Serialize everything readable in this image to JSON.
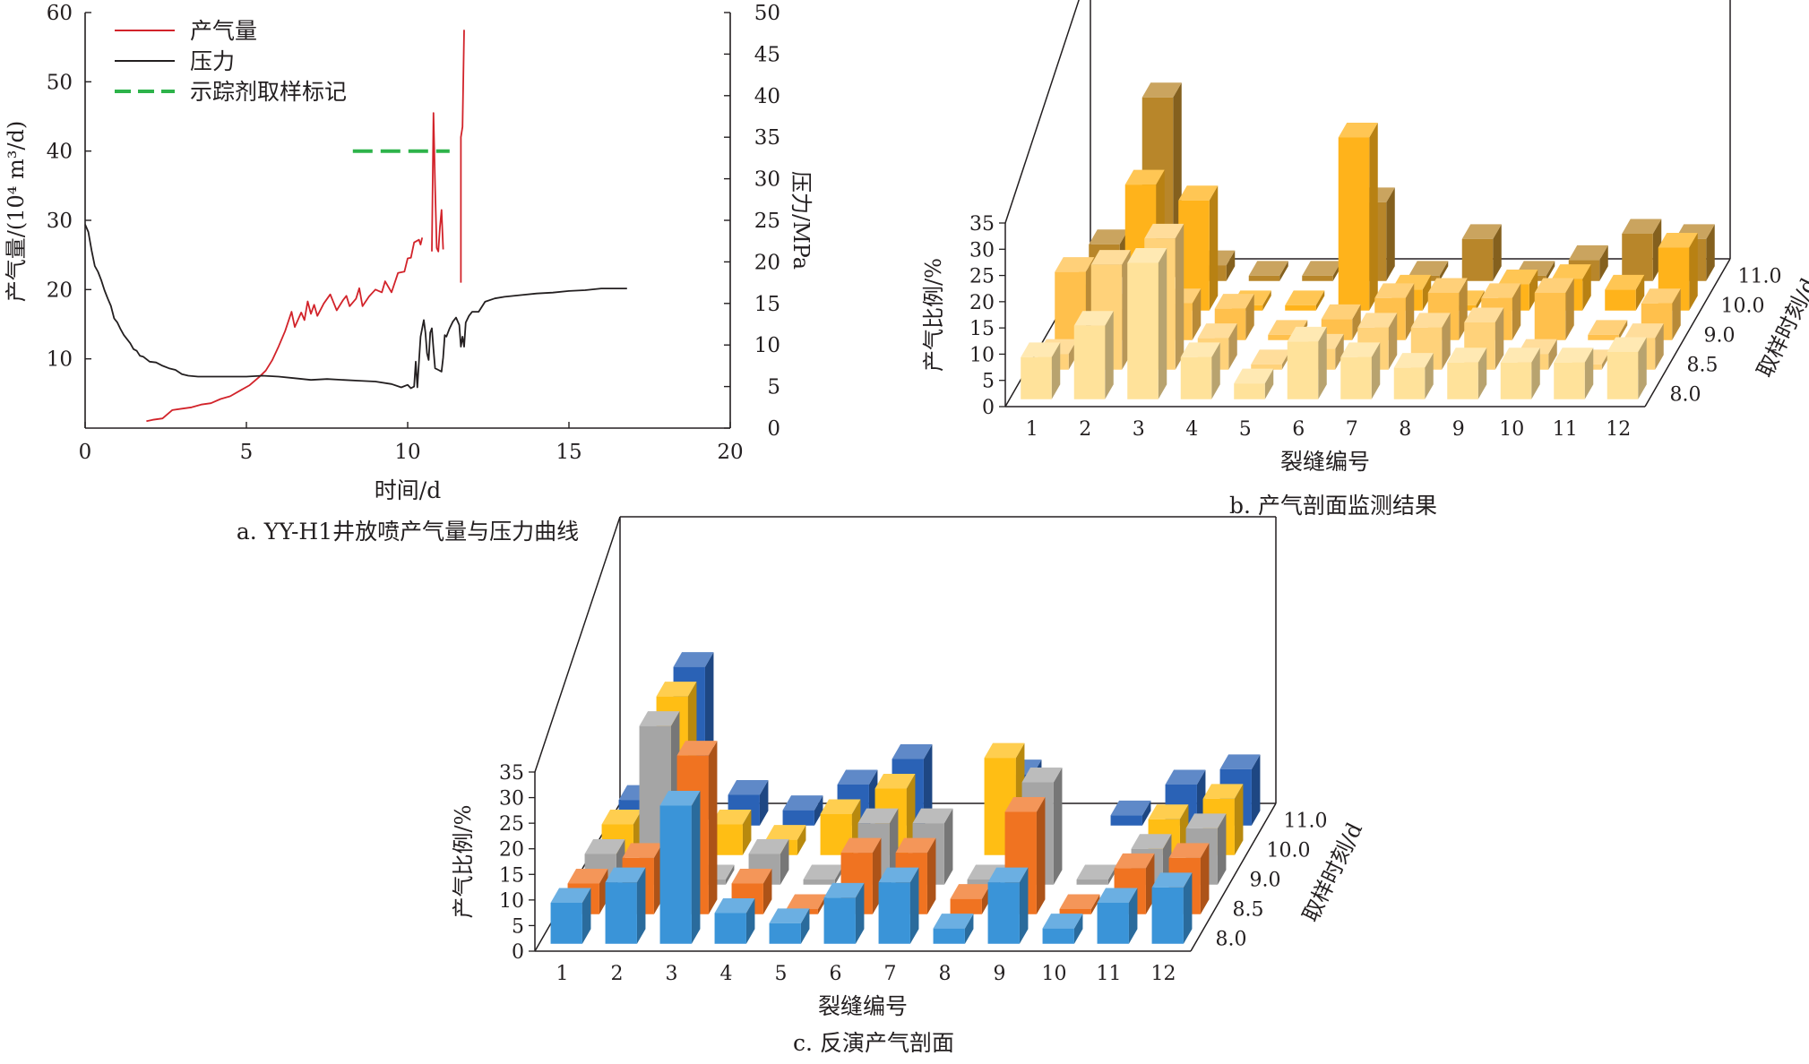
{
  "chart_data": [
    {
      "type": "line",
      "caption": "a. YY-H1井放喷产气量与压力曲线",
      "xlabel": "时间/d",
      "ylabel_left": "产气量/(10⁴ m³/d)",
      "ylabel_right": "压力/MPa",
      "xlim": [
        0,
        20
      ],
      "xticks": [
        "0",
        "5",
        "10",
        "15",
        "20"
      ],
      "ylim_left": [
        0,
        60
      ],
      "yticks_left": [
        "10",
        "20",
        "30",
        "40",
        "50",
        "60"
      ],
      "ylim_right": [
        0,
        50
      ],
      "yticks_right": [
        "0",
        "5",
        "10",
        "15",
        "20",
        "25",
        "30",
        "35",
        "40",
        "45",
        "50"
      ],
      "grid": false,
      "legend_position": "top-left",
      "series": [
        {
          "name": "产气量",
          "axis": "left",
          "color": "#d2232a",
          "style": "solid",
          "points": [
            [
              1.9,
              1
            ],
            [
              2.1,
              1.2
            ],
            [
              2.4,
              1.4
            ],
            [
              2.7,
              2.6
            ],
            [
              3.0,
              2.8
            ],
            [
              3.3,
              3.0
            ],
            [
              3.6,
              3.4
            ],
            [
              3.9,
              3.6
            ],
            [
              4.2,
              4.2
            ],
            [
              4.5,
              4.6
            ],
            [
              4.8,
              5.4
            ],
            [
              5.1,
              6.2
            ],
            [
              5.4,
              7.4
            ],
            [
              5.6,
              8.3
            ],
            [
              5.8,
              9.8
            ],
            [
              6.0,
              11.8
            ],
            [
              6.2,
              14.0
            ],
            [
              6.4,
              16.8
            ],
            [
              6.5,
              14.6
            ],
            [
              6.7,
              16.7
            ],
            [
              6.8,
              15.6
            ],
            [
              6.9,
              18.3
            ],
            [
              7.0,
              16.5
            ],
            [
              7.1,
              17.8
            ],
            [
              7.2,
              16.2
            ],
            [
              7.4,
              18.0
            ],
            [
              7.6,
              19.3
            ],
            [
              7.8,
              17.0
            ],
            [
              8.0,
              18.5
            ],
            [
              8.1,
              19.1
            ],
            [
              8.2,
              17.6
            ],
            [
              8.4,
              18.7
            ],
            [
              8.5,
              20.2
            ],
            [
              8.6,
              17.6
            ],
            [
              8.8,
              19.0
            ],
            [
              9.0,
              20.0
            ],
            [
              9.2,
              19.6
            ],
            [
              9.3,
              21.2
            ],
            [
              9.5,
              19.6
            ],
            [
              9.7,
              22.4
            ],
            [
              9.9,
              22.6
            ],
            [
              10.0,
              24.5
            ],
            [
              10.1,
              24.6
            ],
            [
              10.2,
              26.8
            ],
            [
              10.35,
              27.2
            ],
            [
              10.4,
              26.5
            ],
            [
              10.45,
              27.5
            ]
          ]
        },
        {
          "name": "产气量",
          "axis": "left",
          "color": "#d2232a",
          "style": "solid",
          "legend": false,
          "points": [
            [
              10.75,
              25.5
            ],
            [
              10.8,
              45.5
            ],
            [
              10.85,
              35.0
            ],
            [
              10.9,
              26.0
            ],
            [
              10.95,
              25.5
            ],
            [
              11.0,
              29.0
            ],
            [
              11.05,
              31.5
            ],
            [
              11.1,
              25.8
            ]
          ]
        },
        {
          "name": "产气量",
          "axis": "left",
          "color": "#d2232a",
          "style": "solid",
          "legend": false,
          "points": [
            [
              11.65,
              21.0
            ],
            [
              11.65,
              42.0
            ],
            [
              11.7,
              43.5
            ],
            [
              11.75,
              57.5
            ]
          ]
        },
        {
          "name": "压力",
          "axis": "right",
          "color": "#231f20",
          "style": "solid",
          "points": [
            [
              0.0,
              24.5
            ],
            [
              0.1,
              23.6
            ],
            [
              0.2,
              21.4
            ],
            [
              0.3,
              19.5
            ],
            [
              0.4,
              18.8
            ],
            [
              0.5,
              17.8
            ],
            [
              0.6,
              16.6
            ],
            [
              0.7,
              15.6
            ],
            [
              0.8,
              14.7
            ],
            [
              0.9,
              13.2
            ],
            [
              1.0,
              12.7
            ],
            [
              1.1,
              11.9
            ],
            [
              1.2,
              11.2
            ],
            [
              1.3,
              10.7
            ],
            [
              1.4,
              10.2
            ],
            [
              1.5,
              9.5
            ],
            [
              1.6,
              9.3
            ],
            [
              1.7,
              8.7
            ],
            [
              1.8,
              8.6
            ],
            [
              2.0,
              8.0
            ],
            [
              2.2,
              7.9
            ],
            [
              2.4,
              7.5
            ],
            [
              2.6,
              7.2
            ],
            [
              2.8,
              7.0
            ],
            [
              3.0,
              6.5
            ],
            [
              3.2,
              6.3
            ],
            [
              3.5,
              6.2
            ],
            [
              4.0,
              6.2
            ],
            [
              4.5,
              6.2
            ],
            [
              5.0,
              6.2
            ],
            [
              5.5,
              6.3
            ],
            [
              6.0,
              6.2
            ],
            [
              6.5,
              6.0
            ],
            [
              7.0,
              5.8
            ],
            [
              7.5,
              5.9
            ],
            [
              8.0,
              5.8
            ],
            [
              8.5,
              5.7
            ],
            [
              9.0,
              5.6
            ],
            [
              9.5,
              5.3
            ],
            [
              9.8,
              4.9
            ],
            [
              10.0,
              5.2
            ],
            [
              10.1,
              4.8
            ],
            [
              10.2,
              5.0
            ],
            [
              10.25,
              8.0
            ],
            [
              10.3,
              4.9
            ],
            [
              10.35,
              8.0
            ],
            [
              10.4,
              11.0
            ],
            [
              10.45,
              12.0
            ],
            [
              10.5,
              13.0
            ],
            [
              10.55,
              11.5
            ],
            [
              10.6,
              9.0
            ],
            [
              10.65,
              8.2
            ],
            [
              10.7,
              11.5
            ],
            [
              10.75,
              12.0
            ],
            [
              10.8,
              9.5
            ],
            [
              10.85,
              7.2
            ],
            [
              10.95,
              7.0
            ],
            [
              11.05,
              6.8
            ],
            [
              11.1,
              8.5
            ],
            [
              11.15,
              11.2
            ],
            [
              11.2,
              11.0
            ],
            [
              11.3,
              12.0
            ],
            [
              11.4,
              12.8
            ],
            [
              11.5,
              13.3
            ],
            [
              11.6,
              12.4
            ],
            [
              11.65,
              9.8
            ],
            [
              11.7,
              11.0
            ],
            [
              11.75,
              9.8
            ],
            [
              11.8,
              12.7
            ],
            [
              11.9,
              13.5
            ],
            [
              12.0,
              14.0
            ],
            [
              12.2,
              14.0
            ],
            [
              12.4,
              15.2
            ],
            [
              12.7,
              15.6
            ],
            [
              13.0,
              15.8
            ],
            [
              13.5,
              16.0
            ],
            [
              14.0,
              16.2
            ],
            [
              14.5,
              16.3
            ],
            [
              15.0,
              16.5
            ],
            [
              15.5,
              16.6
            ],
            [
              16.0,
              16.8
            ],
            [
              16.5,
              16.8
            ],
            [
              16.8,
              16.8
            ]
          ]
        },
        {
          "name": "示踪剂取样标记",
          "axis": "left",
          "color": "#2db34a",
          "style": "dashed",
          "points": [
            [
              8.3,
              40
            ],
            [
              11.3,
              40
            ]
          ]
        }
      ]
    },
    {
      "type": "bar3d",
      "caption": "b. 产气剖面监测结果",
      "xlabel": "裂缝编号",
      "ylabel": "产气比例/%",
      "zlabel": "取样时刻/d",
      "categories": [
        "1",
        "2",
        "3",
        "4",
        "5",
        "6",
        "7",
        "8",
        "9",
        "10",
        "11",
        "12"
      ],
      "yticks": [
        "0",
        "5",
        "10",
        "15",
        "20",
        "25",
        "30",
        "35"
      ],
      "ylim": [
        0,
        35
      ],
      "series": [
        {
          "name": "8.0",
          "color": "#ffe29a",
          "values": [
            8,
            14,
            26,
            8,
            3,
            11,
            8,
            6,
            7,
            7,
            7,
            9
          ]
        },
        {
          "name": "8.5",
          "color": "#ffd27a",
          "values": [
            3,
            20,
            25,
            6,
            1,
            4,
            8,
            8,
            9,
            3,
            1,
            6
          ]
        },
        {
          "name": "9.0",
          "color": "#ffc04c",
          "values": [
            13,
            6,
            7,
            6,
            1,
            4,
            8,
            9,
            8,
            9,
            1,
            7
          ]
        },
        {
          "name": "10.0",
          "color": "#ffb31b",
          "values": [
            5,
            24,
            21,
            1,
            1,
            33,
            4,
            1,
            5,
            6,
            4,
            12
          ]
        },
        {
          "name": "11.0",
          "color": "#b8862a",
          "values": [
            7,
            35,
            3,
            1,
            1,
            15,
            1,
            8,
            1,
            4,
            9,
            8
          ]
        }
      ]
    },
    {
      "type": "bar3d",
      "caption": "c. 反演产气剖面",
      "xlabel": "裂缝编号",
      "ylabel": "产气比例/%",
      "zlabel": "取样时刻/d",
      "categories": [
        "1",
        "2",
        "3",
        "4",
        "5",
        "6",
        "7",
        "8",
        "9",
        "10",
        "11",
        "12"
      ],
      "yticks": [
        "0",
        "5",
        "10",
        "15",
        "20",
        "25",
        "30",
        "35"
      ],
      "ylim": [
        0,
        35
      ],
      "series": [
        {
          "name": "8.0",
          "color": "#3a94d8",
          "values": [
            8,
            12,
            27,
            6,
            4,
            9,
            12,
            3,
            12,
            3,
            8,
            11
          ]
        },
        {
          "name": "8.5",
          "color": "#f07321",
          "values": [
            6,
            11,
            31,
            6,
            1,
            12,
            12,
            3,
            20,
            1,
            9,
            11
          ]
        },
        {
          "name": "9.0",
          "color": "#a5a5a5",
          "values": [
            6,
            31,
            1,
            6,
            1,
            12,
            12,
            1,
            20,
            1,
            7,
            11
          ]
        },
        {
          "name": "10.0",
          "color": "#ffbe14",
          "values": [
            6,
            31,
            6,
            3,
            8,
            13,
            0,
            19,
            0,
            0,
            7,
            11
          ]
        },
        {
          "name": "11.0",
          "color": "#2a62b6",
          "values": [
            5,
            31,
            6,
            3,
            8,
            13,
            0,
            10,
            0,
            2,
            8,
            11
          ]
        }
      ]
    }
  ]
}
